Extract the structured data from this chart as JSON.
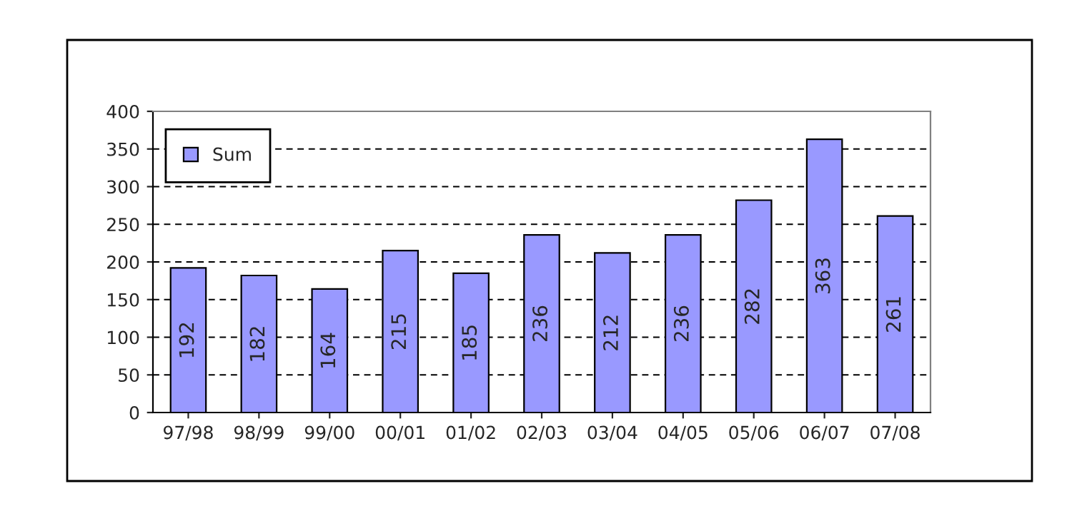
{
  "chart_data": {
    "type": "bar",
    "categories": [
      "97/98",
      "98/99",
      "99/00",
      "00/01",
      "01/02",
      "02/03",
      "03/04",
      "04/05",
      "05/06",
      "06/07",
      "07/08"
    ],
    "series": [
      {
        "name": "Sum",
        "color": "#9999ff",
        "values": [
          192,
          182,
          164,
          215,
          185,
          236,
          212,
          236,
          282,
          363,
          261
        ]
      }
    ],
    "ylim": [
      0,
      400
    ],
    "yticks": [
      0,
      50,
      100,
      150,
      200,
      250,
      300,
      350,
      400
    ],
    "grid": "y",
    "legend": "top left",
    "data_labels": true
  }
}
